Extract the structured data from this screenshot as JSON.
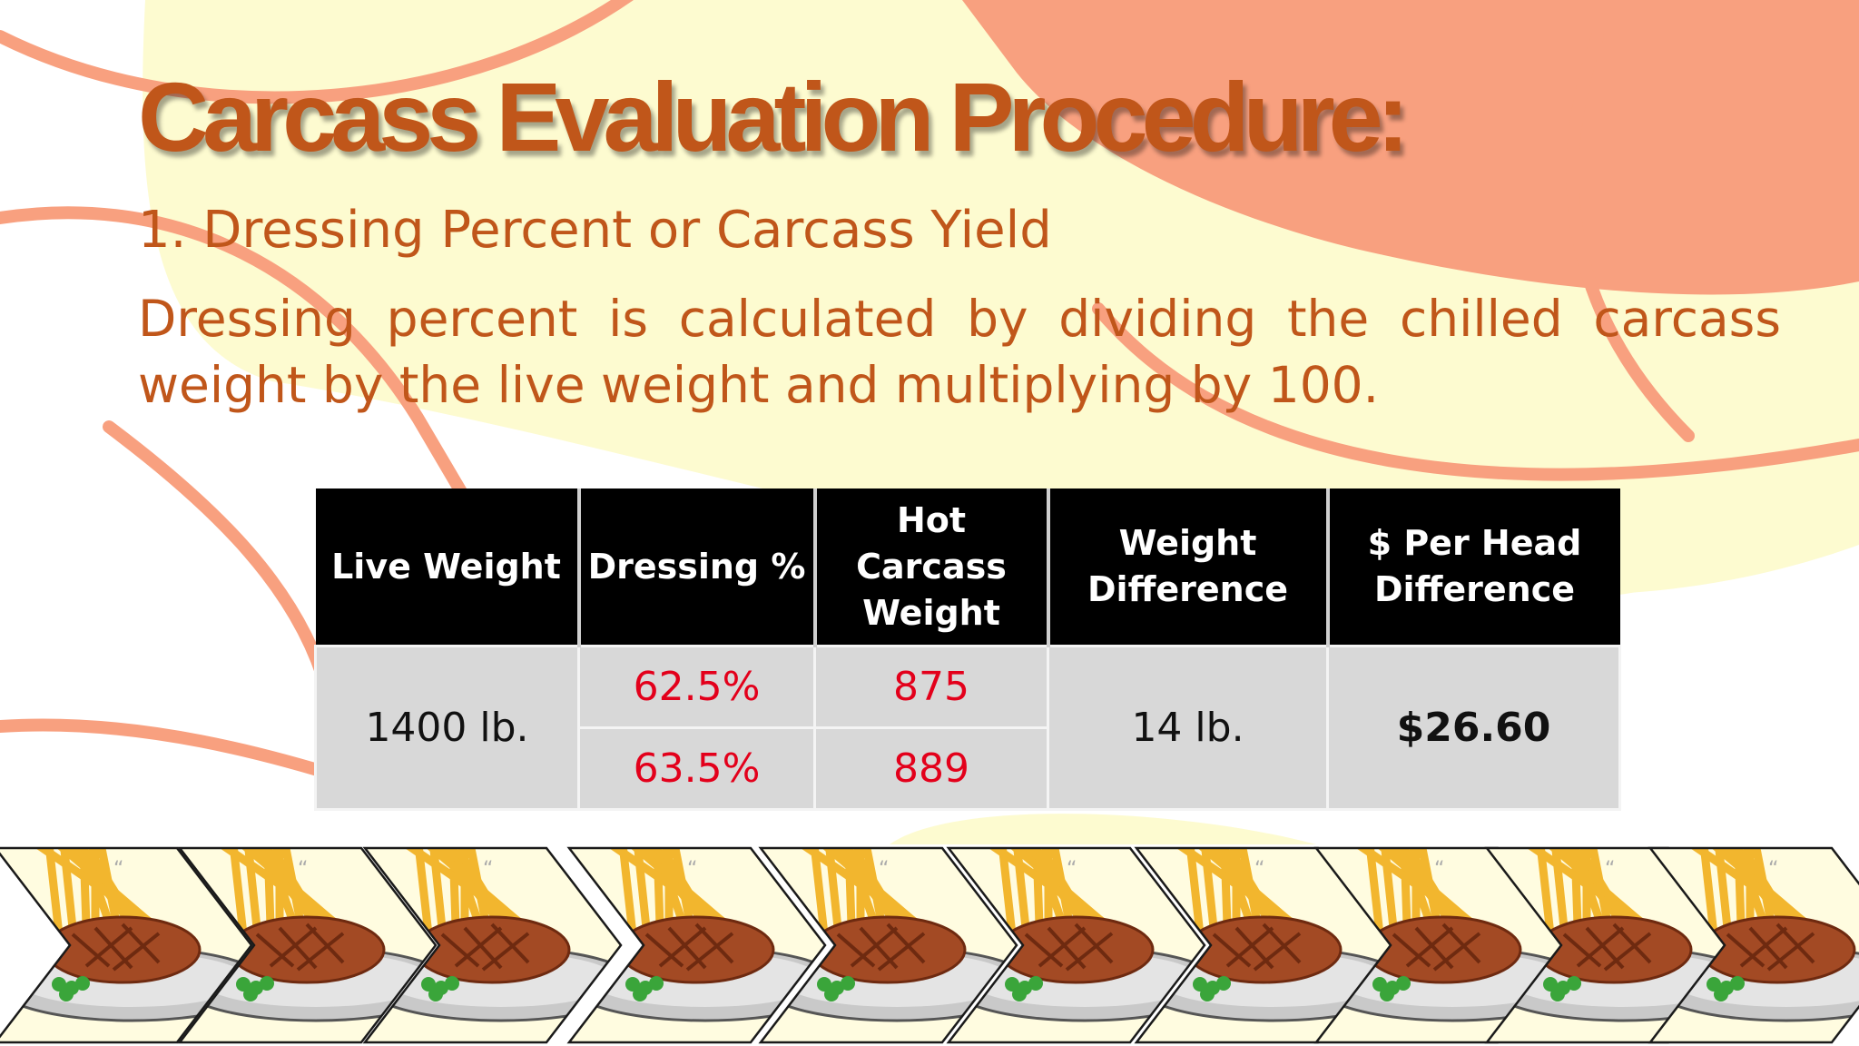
{
  "slide": {
    "title": "Carcass Evaluation Procedure:",
    "subtitle": "1. Dressing Percent or Carcass Yield",
    "paragraph": "Dressing percent is calculated by dividing the chilled carcass weight by the live weight and multiplying by 100."
  },
  "table": {
    "headers": {
      "live_weight": "Live Weight",
      "dressing": "Dressing %",
      "hot_carcass": "Hot Carcass Weight",
      "weight_diff": "Weight Difference",
      "per_head": "$ Per Head Difference"
    },
    "live_weight": "1400 lb.",
    "rows": [
      {
        "dressing": "62.5%",
        "hot_carcass": "875"
      },
      {
        "dressing": "63.5%",
        "hot_carcass": "889"
      }
    ],
    "weight_difference": "14 lb.",
    "per_head_difference": "$26.60"
  },
  "colors": {
    "title": "#c0561a",
    "accent_red": "#e3001b",
    "header_bg": "#000000",
    "cell_bg": "#d8d8d8",
    "blob_orange": "#f8a07f",
    "blob_yellow": "#fdfbd0"
  },
  "decor": {
    "chevron_icon": "steak-and-fries-chevron-icon",
    "chevron_count": 10
  }
}
